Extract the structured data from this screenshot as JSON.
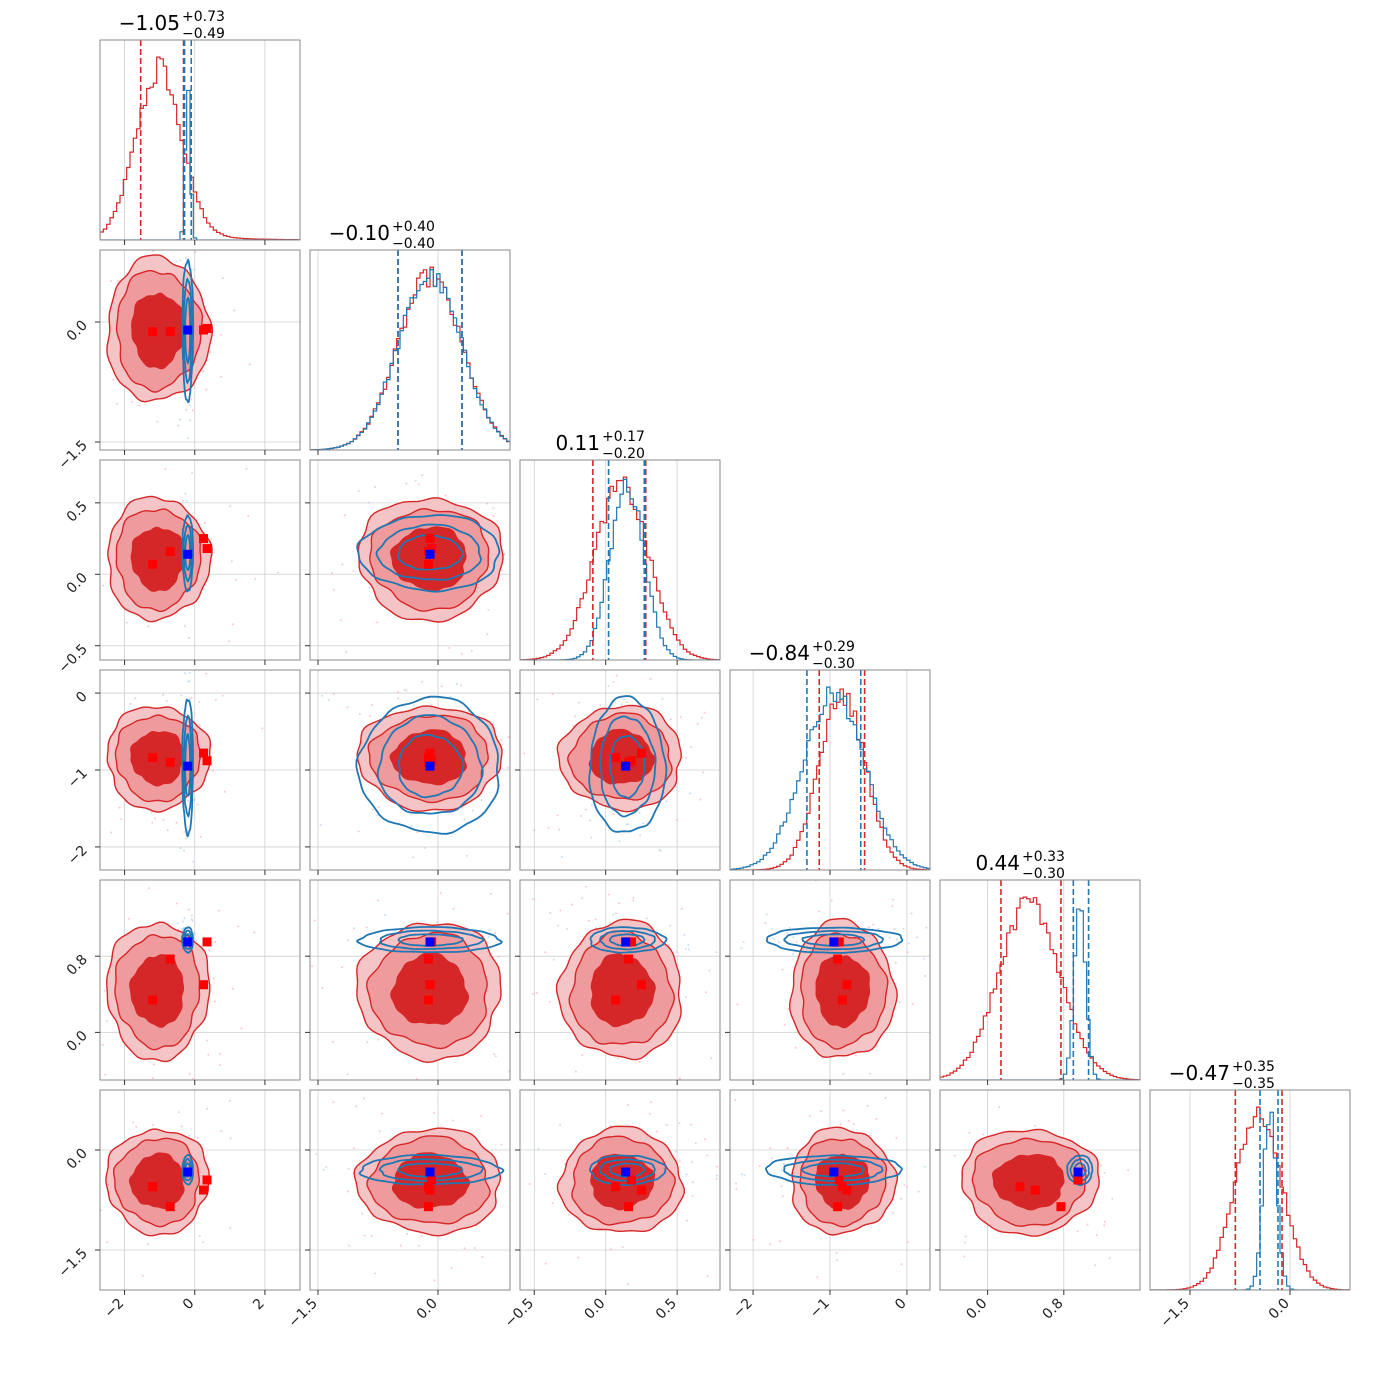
{
  "chart_data": {
    "type": "corner",
    "n_params": 6,
    "colors": {
      "red": "#d62728",
      "blue": "#1f77b4",
      "marker_red": "#ff0000",
      "marker_blue": "#0000ff",
      "grid": "#cfcfcf",
      "frame": "#8a8a8a"
    },
    "params": [
      {
        "range": [
          -2.7,
          3.0
        ],
        "ticks": [
          -2,
          0,
          2
        ],
        "tick_labels": [
          "−2",
          "0",
          "2"
        ],
        "title_value": "−1.05",
        "title_plus": "+0.73",
        "title_minus": "−0.49"
      },
      {
        "range": [
          -1.6,
          0.9
        ],
        "ticks": [
          -1.5,
          0.0
        ],
        "tick_labels": [
          "−1.5",
          "0.0"
        ],
        "title_value": "−0.10",
        "title_plus": "+0.40",
        "title_minus": "−0.40"
      },
      {
        "range": [
          -0.6,
          0.8
        ],
        "ticks": [
          -0.5,
          0.0,
          0.5
        ],
        "tick_labels": [
          "−0.5",
          "0.0",
          "0.5"
        ],
        "title_value": "0.11",
        "title_plus": "+0.17",
        "title_minus": "−0.20"
      },
      {
        "range": [
          -2.3,
          0.3
        ],
        "ticks": [
          -2,
          -1,
          0
        ],
        "tick_labels": [
          "−2",
          "−1",
          "0"
        ],
        "title_value": "−0.84",
        "title_plus": "+0.29",
        "title_minus": "−0.30"
      },
      {
        "range": [
          -0.5,
          1.6
        ],
        "ticks": [
          0.0,
          0.8
        ],
        "tick_labels": [
          "0.0",
          "0.8"
        ],
        "title_value": "0.44",
        "title_plus": "+0.33",
        "title_minus": "−0.30"
      },
      {
        "range": [
          -2.1,
          0.9
        ],
        "ticks": [
          -1.5,
          0.0
        ],
        "tick_labels": [
          "−1.5",
          "0.0"
        ],
        "title_value": "−0.47",
        "title_plus": "+0.35",
        "title_minus": "−0.35"
      }
    ],
    "red_posterior": {
      "mean": [
        -1.05,
        -0.1,
        0.11,
        -0.84,
        0.44,
        -0.47
      ],
      "sd": [
        0.65,
        0.4,
        0.19,
        0.3,
        0.32,
        0.35
      ],
      "quantiles": [
        [
          -1.54,
          -0.32
        ],
        [
          -0.5,
          0.3
        ],
        [
          -0.09,
          0.28
        ],
        [
          -1.14,
          -0.55
        ],
        [
          0.14,
          0.77
        ],
        [
          -0.82,
          -0.12
        ]
      ]
    },
    "blue_posterior": {
      "mean": [
        -0.2,
        -0.1,
        0.15,
        -0.95,
        0.97,
        -0.3
      ],
      "sd": [
        0.07,
        0.4,
        0.12,
        0.4,
        0.06,
        0.1
      ],
      "quantiles": [
        [
          -0.29,
          -0.1
        ],
        [
          -0.5,
          0.3
        ],
        [
          0.02,
          0.27
        ],
        [
          -1.3,
          -0.6
        ],
        [
          0.9,
          1.06
        ],
        [
          -0.45,
          -0.18
        ]
      ]
    },
    "marker_points_red": [
      [
        -1.2,
        -0.12,
        0.07,
        -0.84,
        0.34,
        -0.55
      ],
      [
        -0.7,
        -0.12,
        0.16,
        -0.9,
        0.77,
        -0.85
      ],
      [
        0.25,
        -0.1,
        0.25,
        -0.78,
        0.5,
        -0.6
      ],
      [
        0.35,
        -0.08,
        0.18,
        -0.88,
        0.95,
        -0.45
      ]
    ],
    "marker_point_blue": [
      -0.2,
      -0.1,
      0.14,
      -0.95,
      0.95,
      -0.33
    ]
  }
}
